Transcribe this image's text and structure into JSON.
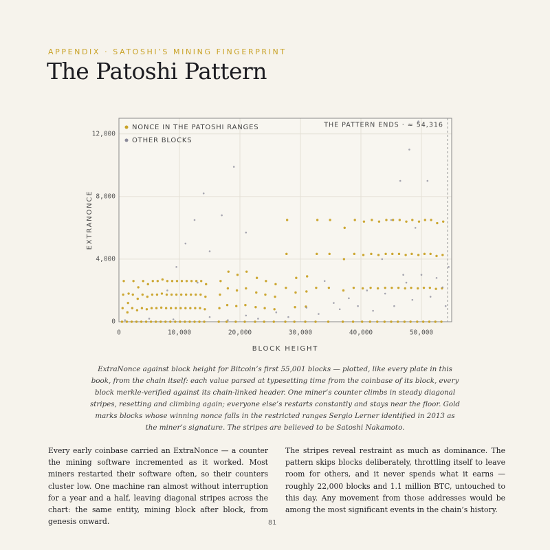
{
  "header": {
    "kicker": "APPENDIX · SATOSHI’S MINING FINGERPRINT",
    "title": "The Patoshi Pattern"
  },
  "chart_data": {
    "type": "scatter",
    "xlabel": "BLOCK HEIGHT",
    "ylabel": "EXTRANONCE",
    "xlim": [
      0,
      55000
    ],
    "ylim": [
      0,
      13000
    ],
    "xticks": [
      0,
      {
        "value": 10000,
        "label": "10,000"
      },
      {
        "value": 20000,
        "label": "20,000"
      },
      {
        "value": 30000,
        "label": "30,000"
      },
      {
        "value": 40000,
        "label": "40,000"
      },
      {
        "value": 50000,
        "label": "50,000"
      }
    ],
    "yticks": [
      0,
      {
        "value": 4000,
        "label": "4,000"
      },
      {
        "value": 8000,
        "label": "8,000"
      },
      {
        "value": 12000,
        "label": "12,000"
      }
    ],
    "grid": true,
    "legend": "upper left",
    "annotation": {
      "text": "THE PATTERN ENDS · ≈ 54,316",
      "x": 54316
    },
    "series": [
      {
        "name": "NONCE IN THE PATOSHI RANGES",
        "color": "#c9a227",
        "x": [
          500,
          600,
          700,
          800,
          1300,
          1400,
          1500,
          1600,
          2100,
          2200,
          2300,
          2400,
          2900,
          3000,
          3100,
          3200,
          3700,
          3800,
          3900,
          4000,
          4500,
          4600,
          4700,
          4800,
          5300,
          5400,
          5500,
          5600,
          6100,
          6200,
          6300,
          6400,
          6900,
          7000,
          7100,
          7200,
          7700,
          7800,
          7900,
          8000,
          8500,
          8600,
          8700,
          8800,
          9300,
          9400,
          9500,
          9600,
          10100,
          10200,
          10300,
          10400,
          10900,
          11000,
          11100,
          11200,
          11700,
          11800,
          11900,
          12000,
          12500,
          12600,
          12700,
          12800,
          13300,
          13400,
          13500,
          13600,
          14100,
          14200,
          14300,
          14400,
          16500,
          16600,
          16700,
          16800,
          17800,
          17900,
          18000,
          18100,
          19300,
          19400,
          19500,
          19600,
          20800,
          20900,
          21000,
          21100,
          22500,
          22600,
          22700,
          22800,
          24000,
          24100,
          24200,
          24300,
          25600,
          25700,
          25800,
          25900,
          27500,
          27600,
          27700,
          27800,
          29000,
          29100,
          29200,
          29300,
          30800,
          30900,
          31000,
          31100,
          32500,
          32600,
          32700,
          32800,
          34600,
          34700,
          34800,
          34900,
          37000,
          37100,
          37200,
          37300,
          38700,
          38800,
          38900,
          39000,
          40200,
          40300,
          40400,
          40500,
          41500,
          41600,
          41700,
          41800,
          42700,
          42800,
          42900,
          43000,
          43900,
          44000,
          44100,
          44200,
          45000,
          45100,
          45200,
          45300,
          46100,
          46200,
          46300,
          46400,
          47200,
          47300,
          47400,
          47500,
          48200,
          48300,
          48400,
          48500,
          49300,
          49400,
          49500,
          49600,
          50300,
          50400,
          50500,
          50600,
          51300,
          51400,
          51500,
          51600,
          52300,
          52400,
          52500,
          52600,
          53300,
          53400,
          53500,
          53600
        ],
        "values": [
          0,
          867,
          1733,
          2600,
          0,
          600,
          1200,
          1800,
          0,
          867,
          1733,
          2600,
          0,
          733,
          1467,
          2200,
          0,
          867,
          1733,
          2600,
          0,
          800,
          1600,
          2400,
          0,
          867,
          1733,
          2600,
          0,
          867,
          1733,
          2600,
          0,
          900,
          1800,
          2700,
          0,
          867,
          1733,
          2600,
          0,
          867,
          1733,
          2600,
          0,
          867,
          1733,
          2600,
          0,
          867,
          1733,
          2600,
          0,
          867,
          1733,
          2600,
          0,
          867,
          1733,
          2600,
          0,
          867,
          1733,
          2600,
          0,
          867,
          1733,
          2600,
          0,
          800,
          1600,
          2400,
          0,
          867,
          1733,
          2600,
          0,
          1067,
          2133,
          3200,
          0,
          1000,
          2000,
          3000,
          0,
          1067,
          2133,
          3200,
          0,
          933,
          1867,
          2800,
          0,
          867,
          1733,
          2600,
          0,
          800,
          1600,
          2400,
          0,
          2167,
          4333,
          6500,
          0,
          933,
          1867,
          2800,
          0,
          967,
          1933,
          2900,
          0,
          2167,
          4333,
          6500,
          0,
          2167,
          4333,
          6500,
          0,
          2000,
          4000,
          6000,
          0,
          2167,
          4333,
          6500,
          0,
          2133,
          4267,
          6400,
          0,
          2167,
          4333,
          6500,
          0,
          2133,
          4267,
          6400,
          0,
          2167,
          4333,
          6500,
          0,
          2167,
          4333,
          6500,
          0,
          2167,
          4333,
          6500,
          0,
          2133,
          4267,
          6400,
          0,
          2167,
          4333,
          6500,
          0,
          2133,
          4267,
          6400,
          0,
          2167,
          4333,
          6500,
          0,
          2167,
          4333,
          6500,
          0,
          2100,
          4200,
          6300,
          0,
          2133,
          4267,
          6400
        ]
      },
      {
        "name": "OTHER BLOCKS",
        "color": "#8a8a9a",
        "x": [
          8000,
          9500,
          11000,
          12500,
          14000,
          13000,
          15000,
          17000,
          19000,
          43500,
          45000,
          46500,
          48000,
          49500,
          47000,
          49000,
          51000,
          1000,
          5000,
          9000,
          15000,
          18000,
          21000,
          23000,
          26000,
          28000,
          31000,
          33000,
          35500,
          36500,
          38000,
          39500,
          41000,
          42000,
          44000,
          45500,
          47500,
          48500,
          50000,
          51500,
          52500,
          53500,
          54500,
          54000,
          21000,
          34000
        ],
        "values": [
          2000,
          3500,
          5000,
          6500,
          8200,
          2500,
          4500,
          6800,
          9900,
          4000,
          6500,
          9000,
          11000,
          12800,
          3000,
          6000,
          9000,
          100,
          200,
          150,
          300,
          100,
          400,
          200,
          600,
          300,
          900,
          500,
          1200,
          800,
          1500,
          1000,
          2000,
          700,
          1800,
          1000,
          2500,
          1400,
          3000,
          1600,
          2800,
          2200,
          3500,
          1000,
          5700,
          2600
        ]
      }
    ]
  },
  "caption": "ExtraNonce against block height for Bitcoin’s first 55,001 blocks — plotted, like every plate in this book, from the chain itself: each value parsed at typesetting time from the coinbase of its block, every block merkle-verified against its chain-linked header. One miner’s counter climbs in steady diagonal stripes, resetting and climbing again; everyone else’s restarts constantly and stays near the floor. Gold marks blocks whose winning nonce falls in the restricted ranges Sergio Lerner identified in 2013 as the miner’s signature. The stripes are believed to be Satoshi Nakamoto.",
  "body": [
    "Every early coinbase carried an ExtraNonce — a counter the mining software incremented as it worked. Most miners restarted their software often, so their counters cluster low. One machine ran almost without interruption for a year and a half, leaving diagonal stripes across the chart: the same entity, mining block after block, from genesis onward.",
    "The stripes reveal restraint as much as dominance. The pattern skips blocks deliberately, throttling itself to leave room for others, and it never spends what it earns — roughly 22,000 blocks and 1.1 million BTC, untouched to this day. Any movement from those addresses would be among the most significant events in the chain’s history."
  ],
  "page_number": "81"
}
